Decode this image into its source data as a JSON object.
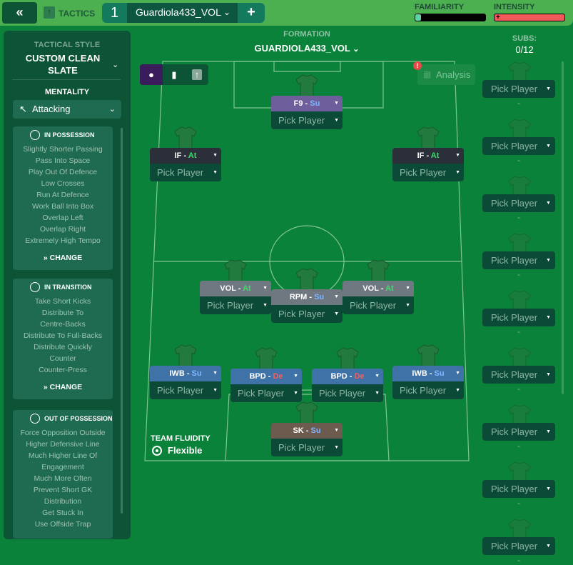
{
  "topbar": {
    "back_icon": "double-chevron-left",
    "tactics_label": "TACTICS",
    "tab_number": "1",
    "tab_name": "Guardiola433_VOL",
    "add_label": "+",
    "familiarity_label": "FAMILIARITY",
    "familiarity_level": 0.08,
    "intensity_label": "INTENSITY",
    "intensity_level": 1.0,
    "colors": {
      "bar_bg": "#4caf50",
      "familiarity": "#5fd3a5",
      "intensity": "#f25a5a"
    }
  },
  "sidebar": {
    "tactical_style_label": "TACTICAL STYLE",
    "tactical_style_value": "CUSTOM CLEAN SLATE",
    "mentality_label": "MENTALITY",
    "mentality_value": "Attacking",
    "sections": [
      {
        "title": "IN POSSESSION",
        "icon": "ball-icon",
        "items": [
          "Slightly Shorter Passing",
          "Pass Into Space",
          "Play Out Of Defence",
          "Low Crosses",
          "Run At Defence",
          "Work Ball Into Box",
          "Overlap Left",
          "Overlap Right",
          "Extremely High Tempo"
        ],
        "change": "CHANGE"
      },
      {
        "title": "IN TRANSITION",
        "icon": "transition-icon",
        "items": [
          "Take Short Kicks",
          "Distribute To",
          "Centre-Backs",
          "Distribute To Full-Backs",
          "Distribute Quickly",
          "Counter",
          "Counter-Press"
        ],
        "change": "CHANGE"
      },
      {
        "title": "OUT OF POSSESSION",
        "icon": "defence-icon",
        "items": [
          "Force Opposition Outside",
          "Higher Defensive Line",
          "Much Higher Line Of",
          "Engagement",
          "Much More Often",
          "Prevent Short GK",
          "Distribution",
          "Get Stuck In",
          "Use Offside Trap"
        ]
      }
    ]
  },
  "formation": {
    "label": "FORMATION",
    "value": "GUARDIOLA433_VOL",
    "analysis_label": "Analysis"
  },
  "fluidity": {
    "label": "TEAM FLUIDITY",
    "value": "Flexible"
  },
  "positions": [
    {
      "role": "F9",
      "duty": "Su",
      "player": "Pick Player",
      "color": "#6e5e9c"
    },
    {
      "role": "IF",
      "duty": "At",
      "player": "Pick Player",
      "color": "#2a2f3a"
    },
    {
      "role": "IF",
      "duty": "At",
      "player": "Pick Player",
      "color": "#2a2f3a"
    },
    {
      "role": "VOL",
      "duty": "At",
      "player": "Pick Player",
      "color": "#6f7781"
    },
    {
      "role": "RPM",
      "duty": "Su",
      "player": "Pick Player",
      "color": "#6f7781"
    },
    {
      "role": "VOL",
      "duty": "At",
      "player": "Pick Player",
      "color": "#6f7781"
    },
    {
      "role": "IWB",
      "duty": "Su",
      "player": "Pick Player",
      "color": "#3f73a8"
    },
    {
      "role": "BPD",
      "duty": "De",
      "player": "Pick Player",
      "color": "#3f73a8"
    },
    {
      "role": "BPD",
      "duty": "De",
      "player": "Pick Player",
      "color": "#3f73a8"
    },
    {
      "role": "IWB",
      "duty": "Su",
      "player": "Pick Player",
      "color": "#3f73a8"
    },
    {
      "role": "SK",
      "duty": "Su",
      "player": "Pick Player",
      "color": "#6e5b4f"
    }
  ],
  "subs": {
    "label": "SUBS:",
    "count": "0/12",
    "slots": [
      {
        "player": "Pick Player",
        "info": "-"
      },
      {
        "player": "Pick Player",
        "info": "-"
      },
      {
        "player": "Pick Player",
        "info": "-"
      },
      {
        "player": "Pick Player",
        "info": "-"
      },
      {
        "player": "Pick Player",
        "info": "-"
      },
      {
        "player": "Pick Player",
        "info": "-"
      },
      {
        "player": "Pick Player",
        "info": "-"
      },
      {
        "player": "Pick Player",
        "info": "-"
      },
      {
        "player": "Pick Player",
        "info": "-"
      }
    ]
  }
}
